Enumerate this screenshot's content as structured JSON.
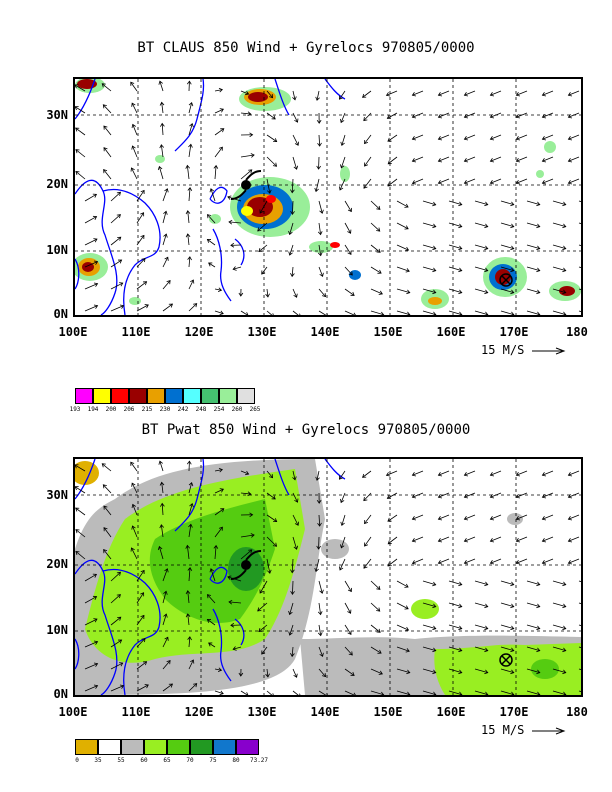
{
  "top": {
    "title": "BT CLAUS 850 Wind + Gyrelocs 970805/0000",
    "lat_labels": [
      "30N",
      "20N",
      "10N",
      "0N"
    ],
    "lon_labels": [
      "100E",
      "110E",
      "120E",
      "130E",
      "140E",
      "150E",
      "160E",
      "170E",
      "180"
    ],
    "ref_vector": "15 M/S",
    "colorbar": {
      "colors": [
        "#ff00ff",
        "#ffff00",
        "#ff0000",
        "#990000",
        "#e8a000",
        "#0070d0",
        "#55ffff",
        "#44c070",
        "#99ee99",
        "#e0e0e0"
      ],
      "labels": [
        "193",
        "194",
        "200",
        "206",
        "215",
        "230",
        "242",
        "248",
        "254",
        "260",
        "265"
      ]
    }
  },
  "bottom": {
    "title": "BT Pwat 850 Wind + Gyrelocs 970805/0000",
    "lat_labels": [
      "30N",
      "20N",
      "10N",
      "0N"
    ],
    "lon_labels": [
      "100E",
      "110E",
      "120E",
      "130E",
      "140E",
      "150E",
      "160E",
      "170E",
      "180"
    ],
    "ref_vector": "15 M/S",
    "colorbar": {
      "colors": [
        "#e0b000",
        "#ffffff",
        "#bbbbbb",
        "#99ee22",
        "#55cc11",
        "#229922",
        "#1177cc",
        "#0044cc",
        "#8800cc"
      ],
      "labels": [
        "0",
        "35",
        "55",
        "60",
        "65",
        "70",
        "75",
        "80",
        "73.27"
      ]
    }
  },
  "colors": {
    "coastline": "#0000ff",
    "grid": "#000000"
  },
  "icons": [
    "cyclone-center-icon",
    "gyre-location-icon"
  ]
}
